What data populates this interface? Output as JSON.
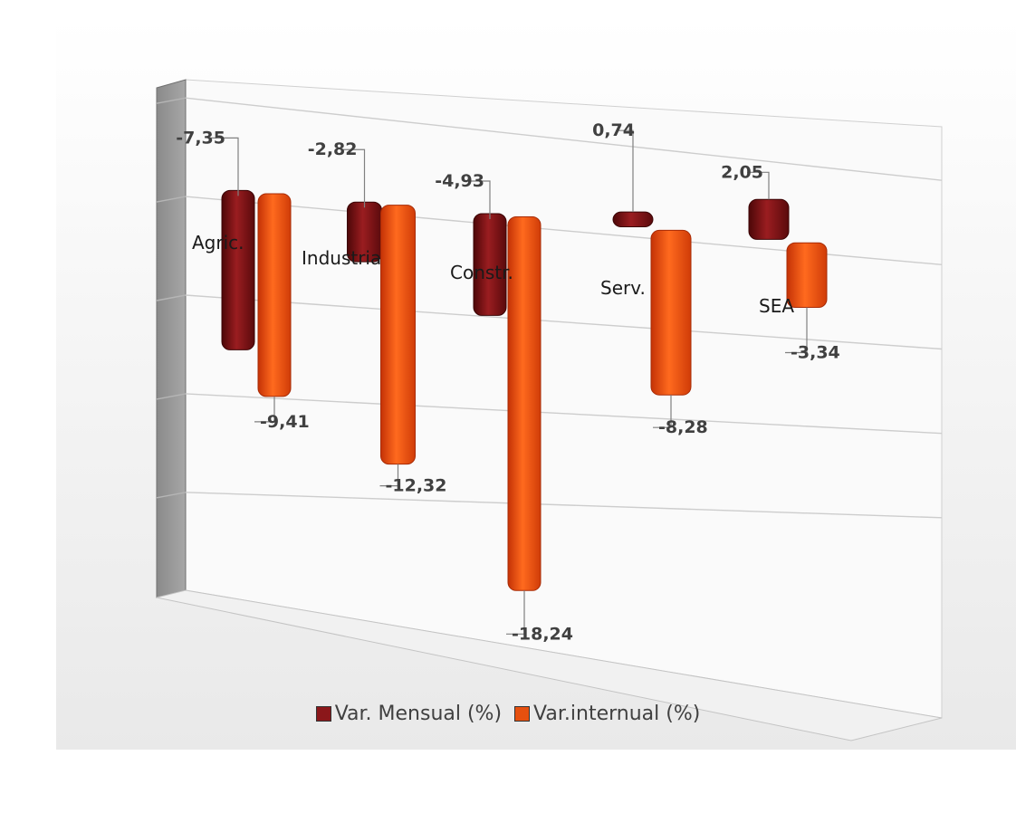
{
  "chart_data": {
    "type": "bar",
    "categories": [
      "Agric.",
      "Industria",
      "Constr.",
      "Serv.",
      "SEA"
    ],
    "series": [
      {
        "name": "Var. Mensual (%)",
        "values": [
          -7.35,
          -2.82,
          -4.93,
          0.74,
          2.05
        ],
        "labels": [
          "-7,35",
          "-2,82",
          "-4,93",
          "0,74",
          "2,05"
        ]
      },
      {
        "name": "Var.internual (%)",
        "values": [
          -9.41,
          -12.32,
          -18.24,
          -8.28,
          -3.34
        ],
        "labels": [
          "-9,41",
          "-12,32",
          "-18,24",
          "-8,28",
          "-3,34"
        ]
      }
    ],
    "colors": {
      "Var. Mensual (%)": "#7f1416",
      "Var.internual (%)": "#e24a0c"
    },
    "legend_position": "bottom",
    "grid": true
  }
}
